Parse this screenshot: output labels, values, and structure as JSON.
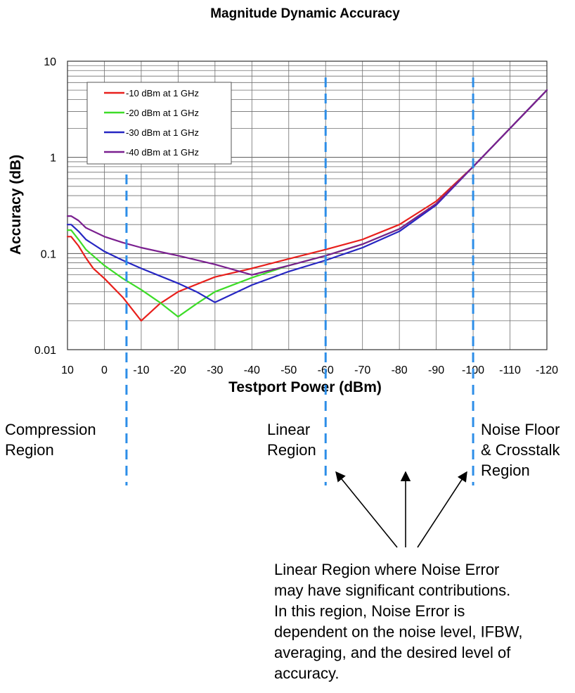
{
  "chart_data": {
    "type": "line",
    "title": "Magnitude Dynamic Accuracy",
    "xlabel": "Testport Power (dBm)",
    "ylabel": "Accuracy (dB)",
    "xlim": [
      10,
      -120
    ],
    "ylim": [
      0.01,
      10
    ],
    "yscale": "log",
    "xticks": [
      10,
      0,
      -10,
      -20,
      -30,
      -40,
      -50,
      -60,
      -70,
      -80,
      -90,
      -100,
      -110,
      -120
    ],
    "xtick_labels": [
      "10",
      "0",
      "-10",
      "-20",
      "-30",
      "-40",
      "-50",
      "-60",
      "-70",
      "-80",
      "-90",
      "-100",
      "-110",
      "-120"
    ],
    "yticks": [
      0.01,
      0.1,
      1,
      10
    ],
    "ytick_labels": [
      "0.01",
      "0.1",
      "1",
      "10"
    ],
    "grid": true,
    "legend": "top-left",
    "series": [
      {
        "name": "-10 dBm at 1 GHz",
        "color": "#e8201c",
        "x": [
          10,
          9,
          7,
          5,
          3,
          0,
          -5,
          -10,
          -15,
          -20,
          -30,
          -40,
          -50,
          -60,
          -70,
          -80,
          -90,
          -100,
          -110,
          -120
        ],
        "y": [
          0.15,
          0.15,
          0.12,
          0.09,
          0.07,
          0.055,
          0.035,
          0.02,
          0.03,
          0.04,
          0.057,
          0.07,
          0.088,
          0.11,
          0.14,
          0.2,
          0.35,
          0.8,
          2.0,
          5.0
        ]
      },
      {
        "name": "-20 dBm at 1 GHz",
        "color": "#3ddc28",
        "x": [
          10,
          9,
          7,
          5,
          0,
          -5,
          -10,
          -15,
          -20,
          -25,
          -30,
          -40,
          -50,
          -60,
          -70,
          -80,
          -90,
          -100,
          -110,
          -120
        ],
        "y": [
          0.175,
          0.175,
          0.14,
          0.11,
          0.075,
          0.055,
          0.042,
          0.031,
          0.022,
          0.03,
          0.04,
          0.056,
          0.075,
          0.095,
          0.125,
          0.18,
          0.33,
          0.8,
          2.0,
          5.0
        ]
      },
      {
        "name": "-30 dBm at 1 GHz",
        "color": "#2626c2",
        "x": [
          10,
          9,
          7,
          5,
          0,
          -5,
          -10,
          -20,
          -25,
          -30,
          -40,
          -50,
          -60,
          -70,
          -80,
          -90,
          -100,
          -110,
          -120
        ],
        "y": [
          0.2,
          0.2,
          0.17,
          0.14,
          0.105,
          0.085,
          0.07,
          0.049,
          0.04,
          0.031,
          0.047,
          0.065,
          0.085,
          0.115,
          0.17,
          0.32,
          0.8,
          2.0,
          5.0
        ]
      },
      {
        "name": "-40 dBm at 1 GHz",
        "color": "#7a1f8f",
        "x": [
          10,
          9,
          7,
          5,
          0,
          -5,
          -10,
          -20,
          -30,
          -40,
          -50,
          -60,
          -70,
          -80,
          -90,
          -100,
          -110,
          -120
        ],
        "y": [
          0.245,
          0.245,
          0.22,
          0.185,
          0.15,
          0.13,
          0.115,
          0.095,
          0.077,
          0.06,
          0.075,
          0.095,
          0.125,
          0.18,
          0.33,
          0.8,
          2.0,
          5.0
        ]
      }
    ],
    "region_markers": [
      {
        "x": -6,
        "label": "Compression\nRegion"
      },
      {
        "x": -60,
        "label": "Linear\nRegion"
      },
      {
        "x": -100,
        "label": "Noise Floor\n& Crosstalk\nRegion"
      }
    ],
    "annotation": {
      "lines": [
        "Linear Region where Noise Error",
        "may have significant contributions.",
        "In this region, Noise Error is",
        "dependent on the noise level, IFBW,",
        "averaging, and the desired level of",
        "accuracy."
      ]
    }
  }
}
